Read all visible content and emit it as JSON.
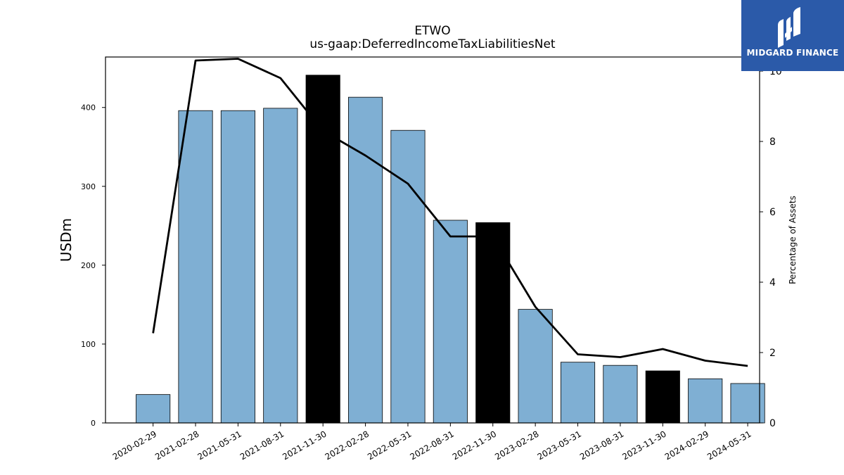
{
  "chart_data": {
    "type": "bar",
    "title": "ETWO",
    "subtitle": "us-gaap:DeferredIncomeTaxLiabilitiesNet",
    "ylabel": "USDm",
    "y2label": "Percentage of Assets",
    "categories": [
      "2020-02-29",
      "2021-02-28",
      "2021-05-31",
      "2021-08-31",
      "2021-11-30",
      "2022-02-28",
      "2022-05-31",
      "2022-08-31",
      "2022-11-30",
      "2023-02-28",
      "2023-05-31",
      "2023-08-31",
      "2023-11-30",
      "2024-02-29",
      "2024-05-31"
    ],
    "series": [
      {
        "values": [
          36,
          396,
          396,
          399,
          441,
          413,
          371,
          257,
          254,
          144,
          77,
          73,
          66,
          56,
          50
        ],
        "highlight": [
          false,
          false,
          false,
          false,
          true,
          false,
          false,
          false,
          true,
          false,
          false,
          false,
          true,
          false,
          false
        ]
      },
      {
        "type": "line",
        "axis": "right",
        "values": [
          2.55,
          10.3,
          10.35,
          9.8,
          8.3,
          7.6,
          6.8,
          5.3,
          5.3,
          3.3,
          1.95,
          1.87,
          2.1,
          1.77,
          1.62
        ]
      }
    ],
    "ylim": [
      0,
      464
    ],
    "y2lim": [
      0,
      10.4
    ],
    "yticks": [
      0,
      100,
      200,
      300,
      400
    ],
    "y2ticks": [
      0,
      2,
      4,
      6,
      8,
      10
    ],
    "colors": {
      "bar": "#7fafd3",
      "highlight": "#000000",
      "line": "#000000"
    }
  },
  "logo": {
    "text": "MIDGARD FINANCE",
    "color": "#2b5aa9"
  }
}
